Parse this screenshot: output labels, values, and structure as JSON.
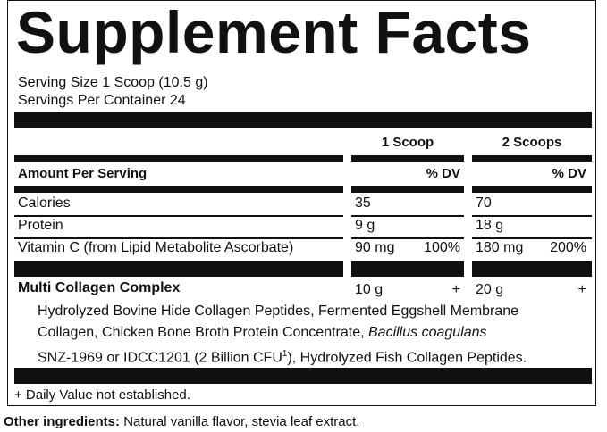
{
  "title": "Supplement Facts",
  "serving": {
    "size": "Serving Size 1 Scoop (10.5 g)",
    "per_container": "Servings Per Container 24"
  },
  "columns": [
    "1 Scoop",
    "2 Scoops"
  ],
  "amount_per_serving": "Amount Per Serving",
  "dv_headers": [
    "% DV",
    "% DV"
  ],
  "rows": [
    {
      "name": "Calories",
      "amount_1": "35",
      "amount_2": "70"
    },
    {
      "name": "Protein",
      "amount_1": "9 g",
      "amount_2": "18 g"
    },
    {
      "name": "Vitamin C (from Lipid Metabolite Ascorbate)",
      "amount_1": "90 mg",
      "dv_1": "100%",
      "amount_2": "180 mg",
      "dv_2": "200%"
    }
  ],
  "blend": {
    "name": "Multi Collagen Complex",
    "amount_1": "10 g",
    "dv_1": "+",
    "amount_2": "20 g",
    "dv_2": "+",
    "lines": [
      "Hydrolyzed Bovine Hide Collagen Peptides, Fermented Eggshell Membrane",
      [
        "Collagen, Chicken Bone Broth Protein Concentrate, ",
        "Bacillus coagulans"
      ],
      [
        "SNZ-1969 or IDCC1201 (2 Billion CFU",
        "1",
        "), Hydrolyzed Fish Collagen Peptides."
      ]
    ]
  },
  "footnote": "+ Daily Value not established.",
  "other_ingredients": {
    "label": "Other ingredients:",
    "text": "Natural vanilla flavor, stevia leaf extract."
  }
}
